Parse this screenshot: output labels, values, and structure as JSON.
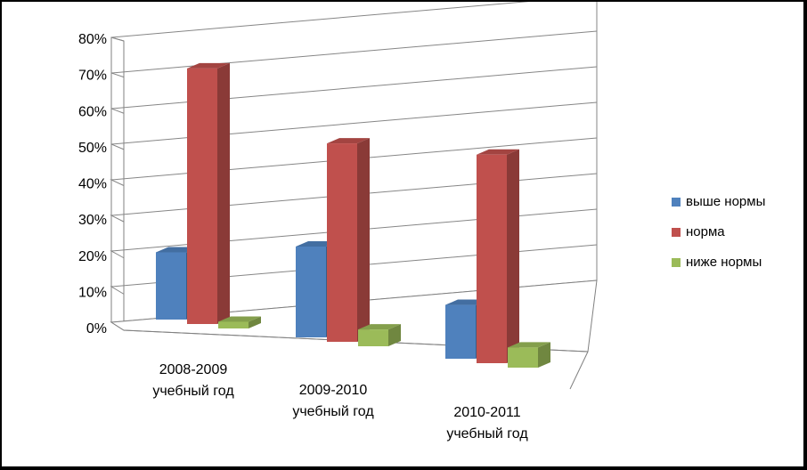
{
  "chart_data": {
    "type": "bar",
    "style": "3d-clustered-column",
    "categories": [
      "2008-2009 учебный год",
      "2009-2010 учебный год",
      "2010-2011 учебный год"
    ],
    "category_lines": [
      [
        "2008-2009",
        "учебный год"
      ],
      [
        "2009-2010",
        "учебный год"
      ],
      [
        "2010-2011",
        "учебный год"
      ]
    ],
    "series": [
      {
        "name": "выше нормы",
        "color": "#4F81BD",
        "values": [
          20,
          27,
          16
        ]
      },
      {
        "name": "норма",
        "color": "#C0504D",
        "values": [
          76,
          59,
          62
        ]
      },
      {
        "name": "ниже нормы",
        "color": "#9BBB59",
        "values": [
          2,
          5,
          6
        ]
      }
    ],
    "ylim": [
      0,
      80
    ],
    "y_ticks": [
      "0%",
      "10%",
      "20%",
      "30%",
      "40%",
      "50%",
      "60%",
      "70%",
      "80%"
    ],
    "grid": true,
    "legend_position": "right"
  }
}
